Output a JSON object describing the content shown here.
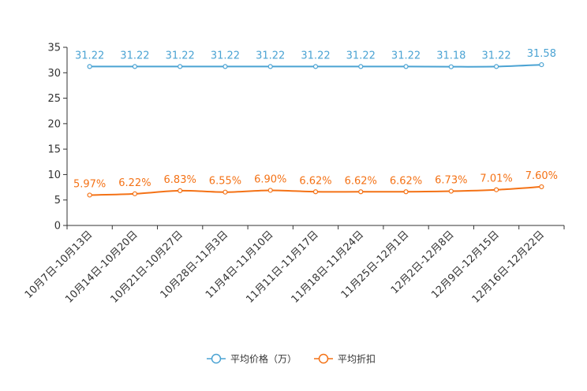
{
  "chart_data": {
    "type": "line",
    "categories": [
      "10月7日-10月13日",
      "10月14日-10月20日",
      "10月21日-10月27日",
      "10月28日-11月3日",
      "11月4日-11月10日",
      "11月11日-11月17日",
      "11月18日-11月24日",
      "11月25日-12月1日",
      "12月2日-12月8日",
      "12月9日-12月15日",
      "12月16日-12月22日"
    ],
    "series": [
      {
        "name": "平均价格（万）",
        "values": [
          31.22,
          31.22,
          31.22,
          31.22,
          31.22,
          31.22,
          31.22,
          31.22,
          31.18,
          31.22,
          31.58
        ],
        "labels": [
          "31.22",
          "31.22",
          "31.22",
          "31.22",
          "31.22",
          "31.22",
          "31.22",
          "31.22",
          "31.18",
          "31.22",
          "31.58"
        ],
        "color": "#4ba3d3"
      },
      {
        "name": "平均折扣",
        "values": [
          5.97,
          6.22,
          6.83,
          6.55,
          6.9,
          6.62,
          6.62,
          6.62,
          6.73,
          7.01,
          7.6
        ],
        "labels": [
          "5.97%",
          "6.22%",
          "6.83%",
          "6.55%",
          "6.90%",
          "6.62%",
          "6.62%",
          "6.62%",
          "6.73%",
          "7.01%",
          "7.60%"
        ],
        "color": "#f47216"
      }
    ],
    "yticks": [
      "0",
      "5",
      "10",
      "15",
      "20",
      "25",
      "30",
      "35"
    ],
    "ylim": [
      0,
      35
    ],
    "legend_position": "bottom"
  }
}
